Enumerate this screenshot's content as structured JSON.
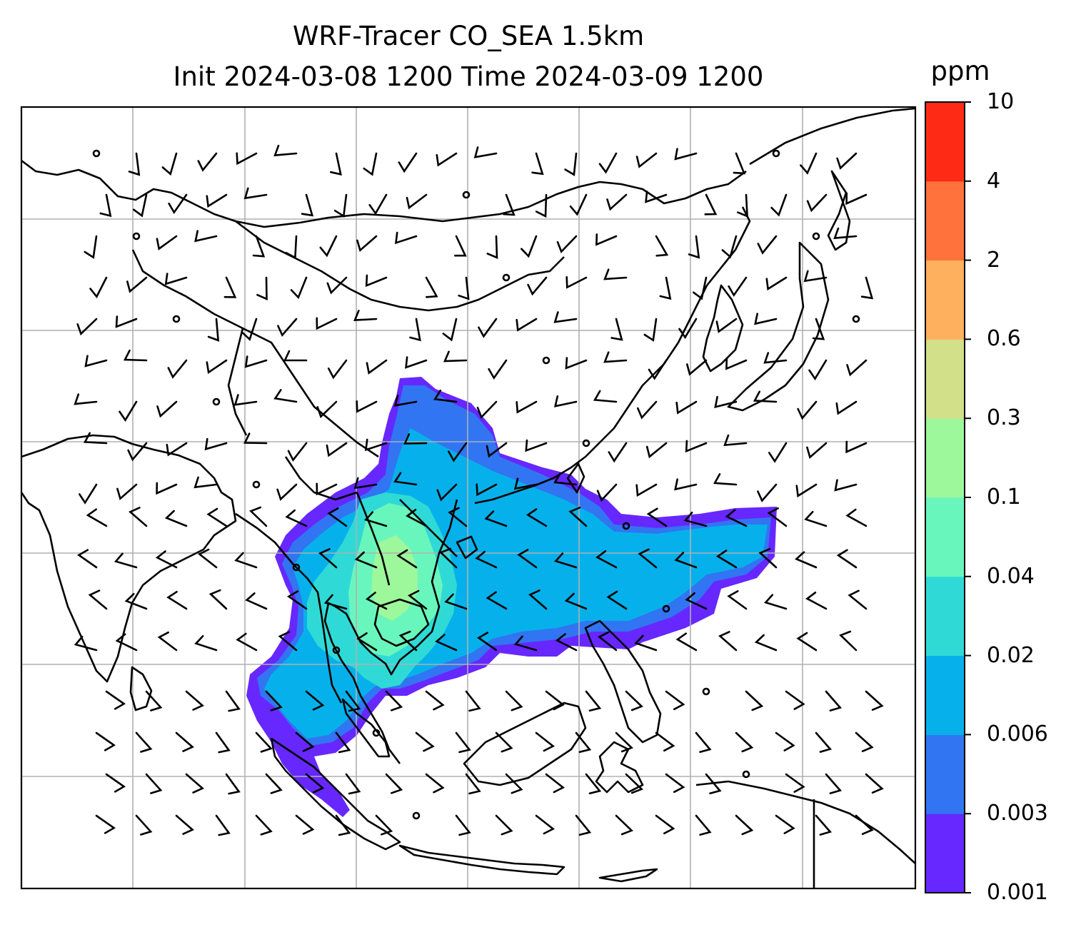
{
  "title": {
    "line1": "WRF-Tracer CO_SEA 1.5km",
    "line2": "Init 2024-03-08 1200 Time 2024-03-09 1200"
  },
  "colorbar": {
    "unit": "ppm",
    "levels": [
      "0.001",
      "0.003",
      "0.006",
      "0.02",
      "0.04",
      "0.1",
      "0.3",
      "0.6",
      "2",
      "4",
      "10"
    ],
    "colors": [
      "#6628FF",
      "#3175F2",
      "#06B1EB",
      "#2FDAD6",
      "#69F6BD",
      "#9DF79B",
      "#D1E089",
      "#FFB05E",
      "#FF723C",
      "#FF2A16"
    ]
  },
  "map": {
    "region": "Southeast Asia",
    "gridlines": true,
    "features": [
      "coastlines",
      "country borders",
      "wind barbs",
      "tracer concentration fill"
    ]
  }
}
